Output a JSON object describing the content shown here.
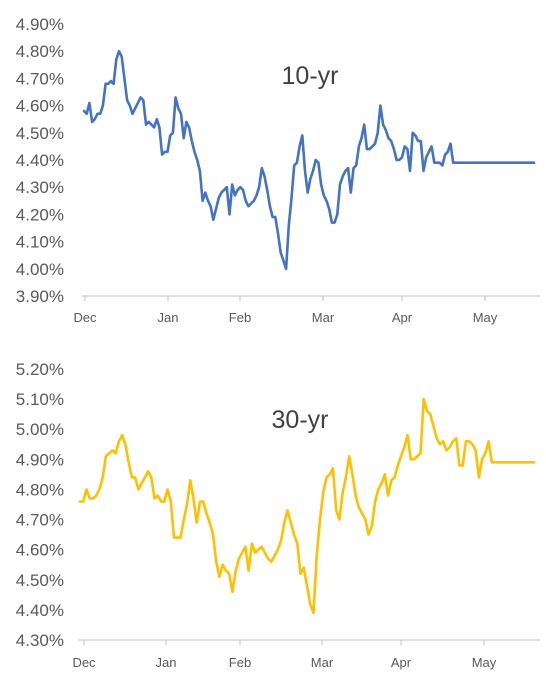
{
  "chart_data": [
    {
      "type": "line",
      "title": "10-yr",
      "color": "#4472c4",
      "ylim": [
        3.9,
        4.9
      ],
      "yticks": [
        "3.90%",
        "4.00%",
        "4.10%",
        "4.20%",
        "4.30%",
        "4.40%",
        "4.50%",
        "4.60%",
        "4.70%",
        "4.80%",
        "4.90%"
      ],
      "xticks": [
        "Dec",
        "Jan",
        "Feb",
        "Mar",
        "Apr",
        "May"
      ],
      "grid": false,
      "series": [
        {
          "x": [
            0,
            1,
            2,
            3,
            4,
            5,
            6,
            7,
            8,
            9,
            10,
            11,
            12,
            13,
            14,
            15,
            16,
            17,
            18,
            19,
            20,
            21,
            22,
            23,
            24,
            25,
            26,
            27,
            28,
            29,
            30,
            31,
            32,
            33,
            34,
            35,
            36,
            37,
            38,
            39,
            40,
            41,
            42,
            43,
            44,
            45,
            46,
            47,
            48,
            49,
            50,
            51,
            52,
            53,
            54,
            55,
            56,
            57,
            58,
            59,
            60,
            61,
            62,
            63,
            64,
            65,
            66,
            67,
            68,
            69,
            70,
            71,
            72,
            73,
            74,
            75,
            76,
            77,
            78,
            79,
            80,
            81,
            82,
            83,
            84,
            85,
            86,
            87,
            88,
            89,
            90,
            91,
            92,
            93,
            94,
            95,
            96,
            97,
            98,
            99,
            100,
            101,
            102,
            103,
            104,
            105,
            106,
            107,
            108,
            109,
            110,
            111,
            112,
            113,
            114,
            115,
            116,
            117,
            118,
            119,
            120,
            121,
            122,
            123,
            124,
            125,
            126,
            127,
            128,
            129,
            130,
            131,
            132,
            133,
            134,
            135,
            136,
            137,
            138,
            139,
            140,
            141,
            142,
            143,
            144,
            145,
            146,
            147,
            148,
            149,
            150,
            151,
            152,
            153,
            154,
            155,
            156,
            157,
            158,
            159,
            160,
            161,
            162,
            163,
            164,
            165,
            166,
            167
          ],
          "y": [
            4.58,
            4.57,
            4.61,
            4.54,
            4.55,
            4.57,
            4.57,
            4.6,
            4.68,
            4.68,
            4.69,
            4.68,
            4.77,
            4.8,
            4.78,
            4.7,
            4.62,
            4.6,
            4.57,
            4.59,
            4.61,
            4.63,
            4.62,
            4.53,
            4.54,
            4.53,
            4.52,
            4.55,
            4.52,
            4.42,
            4.43,
            4.43,
            4.49,
            4.5,
            4.63,
            4.59,
            4.57,
            4.48,
            4.54,
            4.52,
            4.47,
            4.43,
            4.4,
            4.36,
            4.25,
            4.28,
            4.25,
            4.23,
            4.18,
            4.22,
            4.26,
            4.28,
            4.29,
            4.3,
            4.2,
            4.31,
            4.27,
            4.29,
            4.3,
            4.29,
            4.25,
            4.23,
            4.24,
            4.25,
            4.27,
            4.3,
            4.37,
            4.34,
            4.29,
            4.23,
            4.19,
            4.19,
            4.13,
            4.06,
            4.03,
            4.0,
            4.16,
            4.26,
            4.38,
            4.39,
            4.45,
            4.49,
            4.36,
            4.28,
            4.33,
            4.36,
            4.4,
            4.39,
            4.31,
            4.27,
            4.25,
            4.22,
            4.17,
            4.17,
            4.2,
            4.31,
            4.34,
            4.36,
            4.37,
            4.28,
            4.37,
            4.38,
            4.45,
            4.48,
            4.53,
            4.44,
            4.44,
            4.45,
            4.46,
            4.5,
            4.6,
            4.53,
            4.51,
            4.48,
            4.47,
            4.44,
            4.4,
            4.4,
            4.41,
            4.45,
            4.44,
            4.36,
            4.5,
            4.49,
            4.47,
            4.47,
            4.36,
            4.41,
            4.43,
            4.45,
            4.39,
            4.39,
            4.39,
            4.38,
            4.42,
            4.43,
            4.46,
            4.39,
            4.39,
            4.39,
            4.39,
            4.39,
            4.39,
            4.39,
            4.39,
            4.39,
            4.39,
            4.39,
            4.39,
            4.39,
            4.39,
            4.39,
            4.39,
            4.39,
            4.39,
            4.39,
            4.39,
            4.39,
            4.39,
            4.39,
            4.39,
            4.39,
            4.39,
            4.39,
            4.39,
            4.39,
            4.39,
            4.39
          ]
        }
      ]
    },
    {
      "type": "line",
      "title": "30-yr",
      "color": "#ffc000",
      "ylim": [
        4.3,
        5.2
      ],
      "yticks": [
        "4.30%",
        "4.40%",
        "4.50%",
        "4.60%",
        "4.70%",
        "4.80%",
        "4.90%",
        "5.00%",
        "5.10%",
        "5.20%"
      ],
      "xticks": [
        "Dec",
        "Jan",
        "Feb",
        "Mar",
        "Apr",
        "May"
      ],
      "grid": false,
      "series": [
        {
          "x": [
            0,
            1,
            2,
            3,
            4,
            5,
            6,
            7,
            8,
            9,
            10,
            11,
            12,
            13,
            14,
            15,
            16,
            17,
            18,
            19,
            20,
            21,
            22,
            23,
            24,
            25,
            26,
            27,
            28,
            29,
            30,
            31,
            32,
            33,
            34,
            35,
            36,
            37,
            38,
            39,
            40,
            41,
            42,
            43,
            44,
            45,
            46,
            47,
            48,
            49,
            50,
            51,
            52,
            53,
            54,
            55,
            56,
            57,
            58,
            59,
            60,
            61,
            62,
            63,
            64,
            65,
            66,
            67,
            68,
            69,
            70,
            71,
            72,
            73,
            74,
            75,
            76,
            77,
            78,
            79,
            80,
            81,
            82,
            83,
            84,
            85,
            86,
            87,
            88,
            89,
            90,
            91,
            92,
            93,
            94,
            95,
            96,
            97,
            98,
            99,
            100,
            101,
            102,
            103,
            104,
            105,
            106,
            107,
            108,
            109,
            110,
            111,
            112,
            113,
            114,
            115,
            116,
            117,
            118,
            119,
            120,
            121,
            122,
            123,
            124,
            125,
            126,
            127,
            128,
            129,
            130,
            131,
            132,
            133,
            134,
            135,
            136,
            137,
            138,
            139,
            140
          ],
          "y": [
            4.76,
            4.76,
            4.8,
            4.77,
            4.77,
            4.78,
            4.8,
            4.84,
            4.91,
            4.92,
            4.93,
            4.92,
            4.96,
            4.98,
            4.95,
            4.89,
            4.84,
            4.84,
            4.8,
            4.82,
            4.84,
            4.86,
            4.84,
            4.77,
            4.78,
            4.76,
            4.76,
            4.8,
            4.76,
            4.64,
            4.64,
            4.64,
            4.7,
            4.75,
            4.83,
            4.77,
            4.69,
            4.76,
            4.76,
            4.72,
            4.69,
            4.65,
            4.56,
            4.51,
            4.55,
            4.53,
            4.52,
            4.46,
            4.53,
            4.57,
            4.59,
            4.61,
            4.53,
            4.62,
            4.59,
            4.6,
            4.61,
            4.59,
            4.57,
            4.56,
            4.58,
            4.6,
            4.63,
            4.69,
            4.73,
            4.69,
            4.65,
            4.62,
            4.52,
            4.54,
            4.48,
            4.42,
            4.39,
            4.58,
            4.7,
            4.79,
            4.84,
            4.85,
            4.87,
            4.73,
            4.7,
            4.79,
            4.84,
            4.91,
            4.85,
            4.78,
            4.74,
            4.72,
            4.7,
            4.65,
            4.68,
            4.76,
            4.8,
            4.82,
            4.85,
            4.78,
            4.83,
            4.84,
            4.88,
            4.91,
            4.94,
            4.98,
            4.9,
            4.9,
            4.91,
            4.92,
            5.1,
            5.06,
            5.05,
            5.01,
            4.97,
            4.95,
            4.96,
            4.93,
            4.94,
            4.96,
            4.97,
            4.88,
            4.88,
            4.96,
            4.96,
            4.95,
            4.93,
            4.84,
            4.9,
            4.92,
            4.96,
            4.89,
            4.89,
            4.89,
            4.89,
            4.89,
            4.89,
            4.89,
            4.89,
            4.89,
            4.89,
            4.89,
            4.89,
            4.89,
            4.89
          ]
        }
      ]
    }
  ]
}
